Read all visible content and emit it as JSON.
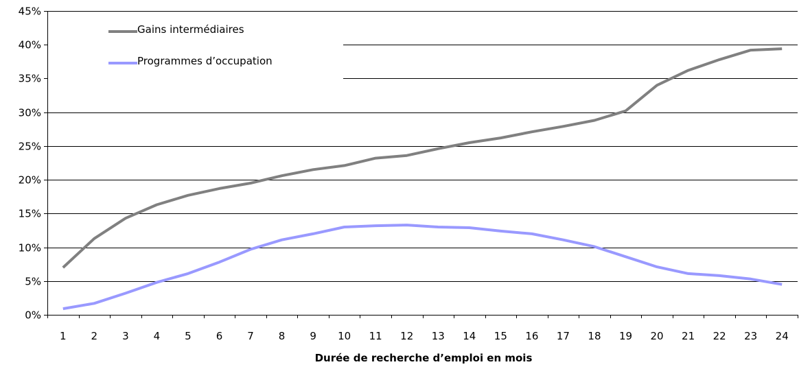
{
  "chart_data": {
    "type": "line",
    "title": "",
    "xlabel": "Durée de recherche d’emploi en mois",
    "ylabel": "",
    "categories": [
      "1",
      "2",
      "3",
      "4",
      "5",
      "6",
      "7",
      "8",
      "9",
      "10",
      "11",
      "12",
      "13",
      "14",
      "15",
      "16",
      "17",
      "18",
      "19",
      "20",
      "21",
      "22",
      "23",
      "24"
    ],
    "y_ticks": [
      "0%",
      "5%",
      "10%",
      "15%",
      "20%",
      "25%",
      "30%",
      "35%",
      "40%",
      "45%"
    ],
    "ylim": [
      0,
      45
    ],
    "y_unit": "%",
    "grid": "horizontal",
    "legend_position": "top-left",
    "series": [
      {
        "name": "Gains intermédiaires",
        "color": "#808080",
        "values": [
          7.0,
          11.3,
          14.3,
          16.3,
          17.7,
          18.7,
          19.5,
          20.6,
          21.5,
          22.1,
          23.2,
          23.6,
          24.6,
          25.5,
          26.2,
          27.1,
          27.9,
          28.8,
          30.2,
          34.0,
          36.2,
          37.8,
          39.2,
          39.4
        ]
      },
      {
        "name": "Programmes d’occupation",
        "color": "#9999ff",
        "values": [
          0.9,
          1.7,
          3.2,
          4.8,
          6.1,
          7.8,
          9.7,
          11.1,
          12.0,
          13.0,
          13.2,
          13.3,
          13.0,
          12.9,
          12.4,
          12.0,
          11.1,
          10.1,
          8.6,
          7.1,
          6.1,
          5.8,
          5.3,
          4.5
        ]
      }
    ]
  }
}
